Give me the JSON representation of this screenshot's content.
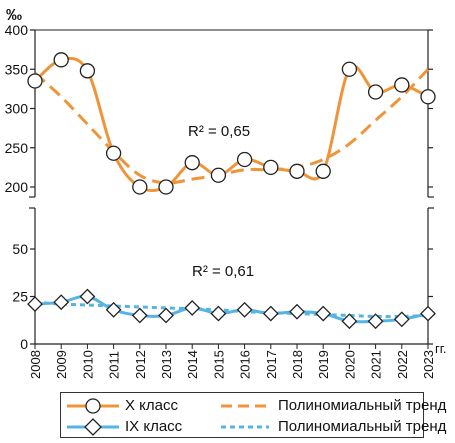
{
  "colors": {
    "x_class": "#f0943a",
    "ix_class": "#55b4e4",
    "axis": "#222222",
    "marker_edge": "#222222",
    "marker_fill": "#ffffff"
  },
  "chart_data": {
    "type": "line",
    "unit_label": "‰",
    "x_suffix": "гг.",
    "x": [
      2008,
      2009,
      2010,
      2011,
      2012,
      2013,
      2014,
      2015,
      2016,
      2017,
      2018,
      2019,
      2020,
      2021,
      2022,
      2023
    ],
    "axis_break": true,
    "upper_panel": {
      "ylim": [
        200,
        400
      ],
      "yticks": [
        200,
        250,
        300,
        350,
        400
      ],
      "annotation": "R² = 0,65",
      "series": [
        {
          "name": "X класс",
          "marker": "circle",
          "values": [
            335,
            362,
            348,
            243,
            200,
            200,
            231,
            215,
            235,
            225,
            220,
            220,
            350,
            321,
            330,
            315
          ]
        },
        {
          "name": "Полиномиальный тренд",
          "style": "dashed",
          "values": [
            345,
            315,
            280,
            245,
            215,
            205,
            210,
            215,
            222,
            222,
            225,
            235,
            255,
            285,
            315,
            350
          ]
        }
      ]
    },
    "lower_panel": {
      "ylim": [
        0,
        60
      ],
      "yticks": [
        0,
        25,
        50
      ],
      "annotation": "R² = 0,61",
      "series": [
        {
          "name": "IX класс",
          "marker": "diamond",
          "values": [
            21,
            22,
            25,
            18,
            15,
            15,
            19,
            16,
            18,
            16,
            17,
            16,
            12,
            12,
            13,
            16
          ]
        },
        {
          "name": "Полиномиальный тренд",
          "style": "dotted",
          "values": [
            22,
            21,
            20.5,
            20,
            19.5,
            19,
            18.5,
            18,
            17,
            16.5,
            16,
            15.5,
            15,
            14.5,
            14.5,
            15
          ]
        }
      ]
    }
  }
}
